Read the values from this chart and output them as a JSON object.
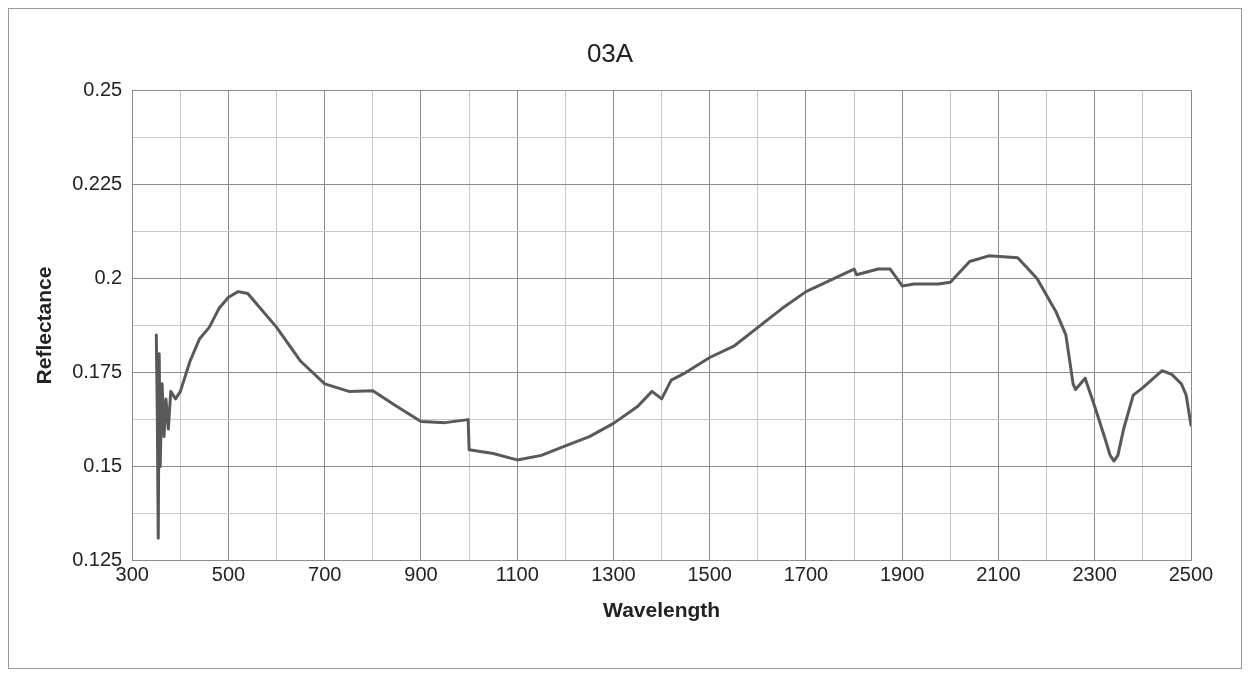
{
  "chart_data": {
    "type": "line",
    "title": "03A",
    "xlabel": "Wavelength",
    "ylabel": "Reflectance",
    "xlim": [
      300,
      2500
    ],
    "ylim": [
      0.125,
      0.25
    ],
    "xticks": [
      300,
      {
        "value": 400,
        "label": null
      },
      500,
      {
        "value": 600,
        "label": null
      },
      700,
      {
        "value": 800,
        "label": null
      },
      900,
      {
        "value": 1000,
        "label": null
      },
      1100,
      {
        "value": 1200,
        "label": null
      },
      1300,
      {
        "value": 1400,
        "label": null
      },
      1500,
      {
        "value": 1600,
        "label": null
      },
      1700,
      {
        "value": 1800,
        "label": null
      },
      1900,
      {
        "value": 2000,
        "label": null
      },
      2100,
      {
        "value": 2200,
        "label": null
      },
      2300,
      {
        "value": 2400,
        "label": null
      },
      2500
    ],
    "yticks": [
      0.125,
      {
        "value": 0.1375,
        "label": null
      },
      0.15,
      {
        "value": 0.1625,
        "label": null
      },
      0.175,
      {
        "value": 0.1875,
        "label": null
      },
      0.2,
      {
        "value": 0.2125,
        "label": null
      },
      0.225,
      {
        "value": 0.2375,
        "label": null
      },
      0.25
    ],
    "grid": true,
    "legend": false,
    "marker": "none",
    "line_style": "solid",
    "series": [
      {
        "color": "#595959",
        "x": [
          350,
          352,
          354,
          356,
          358,
          362,
          366,
          370,
          375,
          380,
          390,
          400,
          420,
          440,
          460,
          480,
          500,
          520,
          540,
          560,
          600,
          650,
          700,
          750,
          800,
          850,
          900,
          950,
          998,
          1000,
          1050,
          1100,
          1150,
          1200,
          1250,
          1300,
          1350,
          1380,
          1400,
          1420,
          1450,
          1500,
          1550,
          1600,
          1650,
          1700,
          1750,
          1800,
          1805,
          1850,
          1875,
          1900,
          1925,
          1975,
          2000,
          2040,
          2080,
          2140,
          2180,
          2220,
          2240,
          2255,
          2260,
          2280,
          2300,
          2320,
          2332,
          2340,
          2348,
          2360,
          2380,
          2400,
          2440,
          2460,
          2480,
          2490,
          2500
        ],
        "values": [
          0.185,
          0.165,
          0.131,
          0.18,
          0.15,
          0.172,
          0.158,
          0.168,
          0.16,
          0.17,
          0.168,
          0.17,
          0.178,
          0.184,
          0.187,
          0.192,
          0.195,
          0.1965,
          0.196,
          0.193,
          0.187,
          0.178,
          0.172,
          0.17,
          0.1702,
          0.166,
          0.162,
          0.1617,
          0.1625,
          0.1545,
          0.1535,
          0.1518,
          0.153,
          0.1555,
          0.158,
          0.1615,
          0.166,
          0.17,
          0.168,
          0.173,
          0.175,
          0.179,
          0.182,
          0.187,
          0.192,
          0.1965,
          0.1995,
          0.2025,
          0.201,
          0.2025,
          0.2025,
          0.198,
          0.1985,
          0.1985,
          0.199,
          0.2045,
          0.206,
          0.2055,
          0.2,
          0.191,
          0.185,
          0.172,
          0.1705,
          0.1735,
          0.166,
          0.158,
          0.153,
          0.1515,
          0.153,
          0.16,
          0.169,
          0.171,
          0.1755,
          0.1745,
          0.172,
          0.169,
          0.161
        ]
      }
    ]
  }
}
